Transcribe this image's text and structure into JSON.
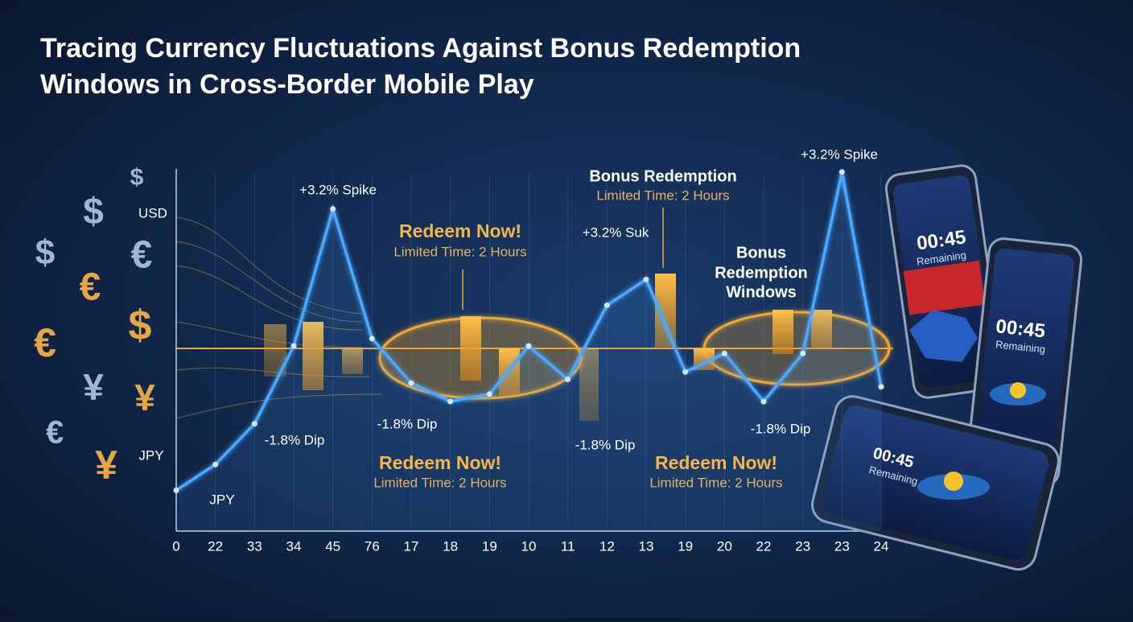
{
  "chart_data": {
    "type": "line",
    "title": "Tracing Currency Fluctuations Against Bonus Redemption",
    "subtitle": "Windows in Cross-Border Mobile Play",
    "categories": [
      "0",
      "22",
      "33",
      "34",
      "45",
      "76",
      "17",
      "18",
      "19",
      "10",
      "11",
      "12",
      "13",
      "19",
      "20",
      "22",
      "23",
      "23",
      "24"
    ],
    "values": [
      11,
      18,
      29,
      50,
      87,
      52,
      40,
      35,
      37,
      50,
      41,
      61,
      68,
      43,
      48,
      35,
      48,
      97,
      39
    ],
    "color": "#4aa8ff",
    "ylim": [
      0,
      100
    ],
    "axis_labels": [
      "USD",
      "JPY"
    ],
    "annotations": [
      "+3.2% Spike",
      "-1.8% Dip",
      "JPY",
      "Redeem Now!",
      "Limited Time: 2 Hours",
      "-1.8% Dip",
      "Redeem Now!",
      "Limited Time: 2 Hours",
      "Bonus Redemption",
      "Limited Time: 2 Hours",
      "+3.2% Suk",
      "-1.8% Dip",
      "Bonus",
      "Redemption",
      "Windows",
      "+3.2% Spike",
      "-1.8% Dip",
      "Redeem Now!",
      "Limited Time: 2 Hours"
    ],
    "symbols": [
      "$",
      "$",
      "$",
      "€",
      "€",
      "$",
      "€",
      "¥",
      "¥",
      "€",
      "¥"
    ],
    "phones": [
      {
        "time": "00:45",
        "label": "Remaining"
      },
      {
        "time": "00:45",
        "label": "Remaining"
      },
      {
        "time": "00:45",
        "label": "Remaining"
      }
    ]
  }
}
